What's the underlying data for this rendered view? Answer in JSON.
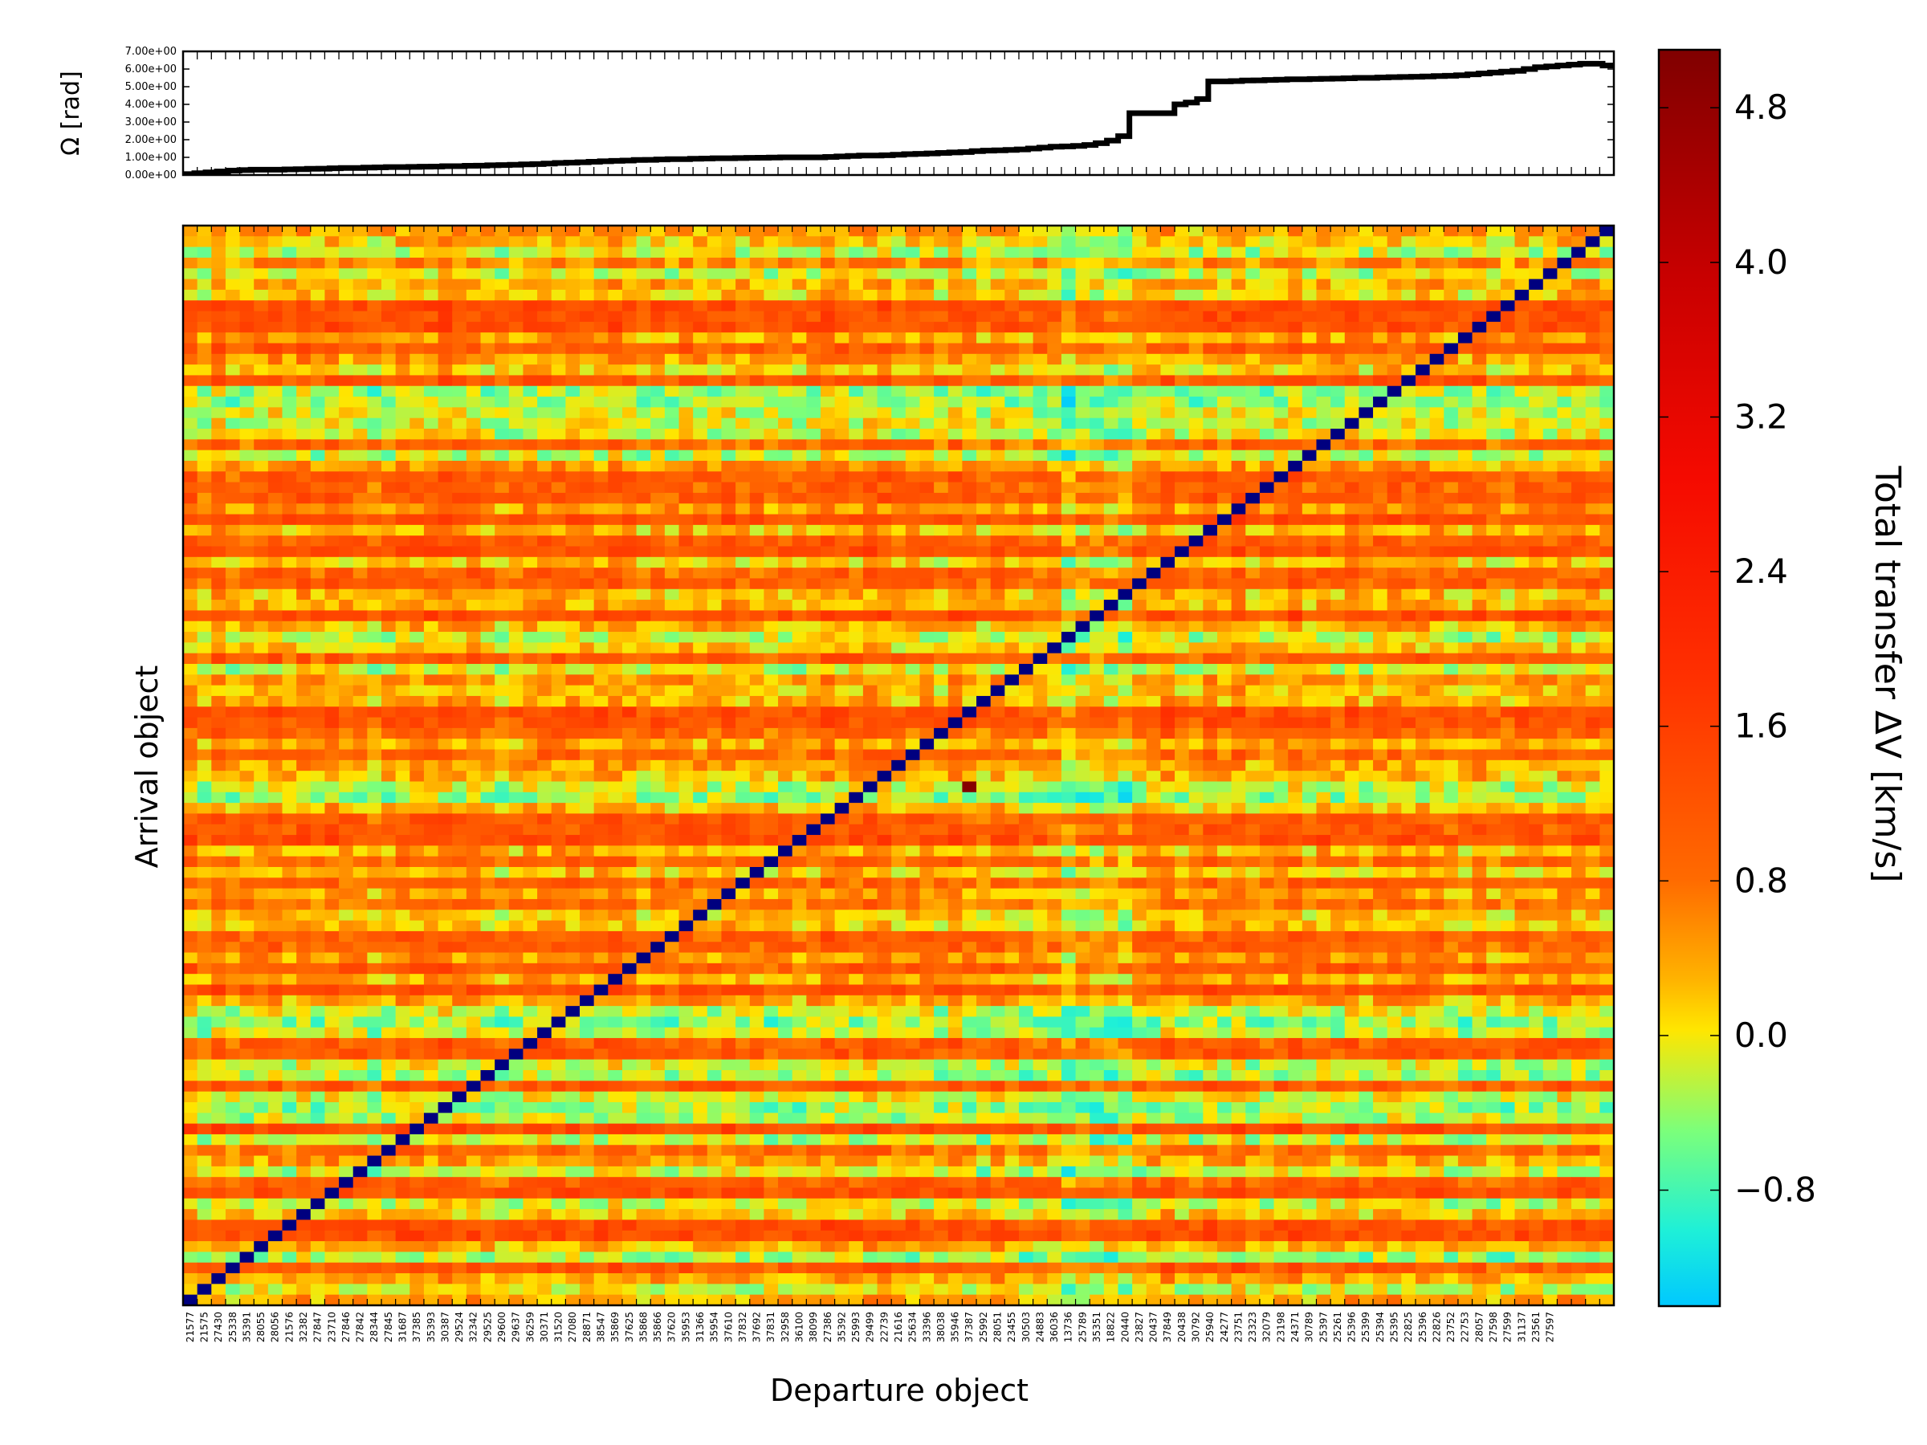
{
  "chart_data": [
    {
      "type": "line",
      "panel": "top",
      "ylabel": "Ω [rad]",
      "xlabel": "",
      "ylim": [
        0,
        7
      ],
      "yticks": [
        "0.00e+00",
        "1.00e+00",
        "2.00e+00",
        "3.00e+00",
        "4.00e+00",
        "5.00e+00",
        "6.00e+00",
        "7.00e+00"
      ],
      "grid": false,
      "series": [
        {
          "values": [
            0.05,
            0.1,
            0.15,
            0.2,
            0.25,
            0.28,
            0.3,
            0.3,
            0.3,
            0.32,
            0.33,
            0.35,
            0.36,
            0.38,
            0.4,
            0.4,
            0.42,
            0.43,
            0.45,
            0.45,
            0.46,
            0.47,
            0.48,
            0.5,
            0.5,
            0.52,
            0.53,
            0.55,
            0.56,
            0.58,
            0.6,
            0.62,
            0.65,
            0.68,
            0.7,
            0.72,
            0.75,
            0.78,
            0.8,
            0.82,
            0.85,
            0.86,
            0.88,
            0.9,
            0.9,
            0.92,
            0.93,
            0.95,
            0.95,
            0.96,
            0.97,
            0.98,
            0.99,
            1.0,
            1.0,
            1.0,
            1.0,
            1.02,
            1.05,
            1.08,
            1.1,
            1.1,
            1.12,
            1.15,
            1.18,
            1.2,
            1.22,
            1.25,
            1.28,
            1.3,
            1.35,
            1.38,
            1.4,
            1.42,
            1.45,
            1.5,
            1.55,
            1.6,
            1.62,
            1.65,
            1.7,
            1.8,
            1.95,
            2.2,
            3.5,
            3.5,
            3.5,
            3.5,
            4.0,
            4.1,
            4.3,
            5.3,
            5.3,
            5.32,
            5.35,
            5.36,
            5.38,
            5.4,
            5.42,
            5.42,
            5.44,
            5.45,
            5.46,
            5.48,
            5.5,
            5.5,
            5.52,
            5.54,
            5.55,
            5.56,
            5.58,
            5.6,
            5.62,
            5.65,
            5.7,
            5.75,
            5.8,
            5.85,
            5.9,
            6.0,
            6.1,
            6.15,
            6.2,
            6.25,
            6.3,
            6.3,
            6.2,
            6.2
          ]
        }
      ]
    },
    {
      "type": "heatmap",
      "panel": "main",
      "xlabel": "Departure object",
      "ylabel": "Arrival object",
      "colorbar_label": "Total transfer ΔV [km/s]",
      "colorbar_ticks": [
        "−0.8",
        "0.0",
        "0.8",
        "1.6",
        "2.4",
        "3.2",
        "4.0",
        "4.8"
      ],
      "colorbar_tick_values": [
        -0.8,
        0.0,
        0.8,
        1.6,
        2.4,
        3.2,
        4.0,
        4.8
      ],
      "vlim": [
        -1.4,
        5.1
      ],
      "n_objects": 101,
      "diagonal_color": "#00007f",
      "outlier": {
        "col": 55,
        "row": 52,
        "value": 5.0
      },
      "categories": [
        "21577",
        "21575",
        "27430",
        "25338",
        "35391",
        "28055",
        "28056",
        "21576",
        "32382",
        "27847",
        "23710",
        "27846",
        "27842",
        "28344",
        "27845",
        "31687",
        "37385",
        "35393",
        "30387",
        "29524",
        "32342",
        "29525",
        "29600",
        "29637",
        "36259",
        "30371",
        "31520",
        "27080",
        "28871",
        "38547",
        "35869",
        "37625",
        "35868",
        "35866",
        "37620",
        "35953",
        "31366",
        "35954",
        "37610",
        "37832",
        "37692",
        "37831",
        "32958",
        "36100",
        "38099",
        "27386",
        "35392",
        "25993",
        "29499",
        "22739",
        "21616",
        "25634",
        "33396",
        "38038",
        "35946",
        "37387",
        "25992",
        "28051",
        "23455",
        "30503",
        "24883",
        "36036",
        "13736",
        "25789",
        "35351",
        "18822",
        "20440",
        "23827",
        "20437",
        "37849",
        "20438",
        "30792",
        "25940",
        "24277",
        "23751",
        "23323",
        "32079",
        "23198",
        "24371",
        "30789",
        "25397",
        "25261",
        "25396",
        "25399",
        "25394",
        "25395",
        "22825",
        "25396",
        "22826",
        "23752",
        "22753",
        "28057",
        "27598",
        "27599",
        "31137",
        "23561",
        "27597",
        "",
        "",
        "",
        ""
      ]
    }
  ]
}
